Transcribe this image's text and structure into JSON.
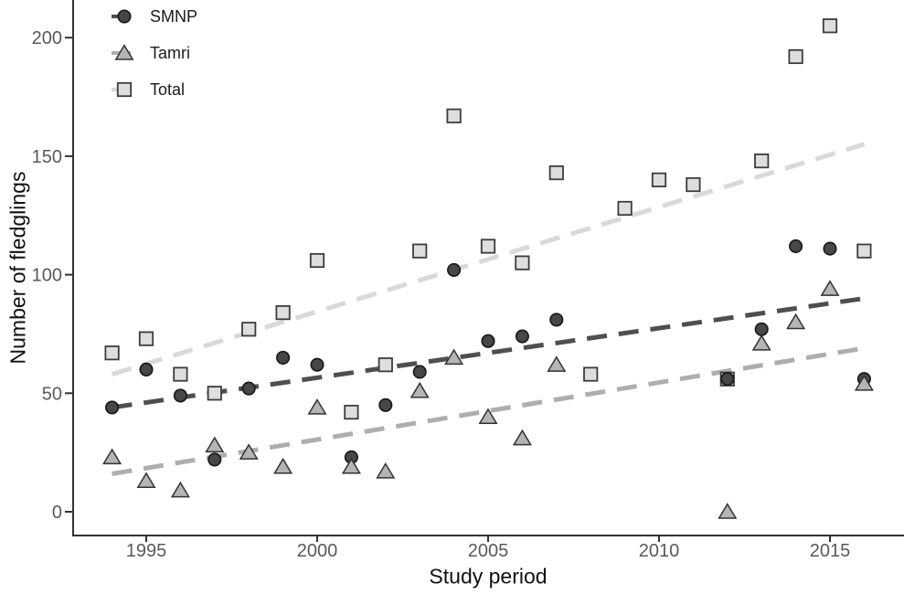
{
  "chart_data": {
    "type": "scatter",
    "title": "",
    "xlabel": "Study period",
    "ylabel": "Number of fledglings",
    "x_ticks": [
      1995,
      2000,
      2005,
      2010,
      2015
    ],
    "y_ticks": [
      0,
      50,
      100,
      150,
      200
    ],
    "xlim": [
      1992.9,
      2017.2
    ],
    "ylim": [
      -10,
      216
    ],
    "grid": false,
    "legend_position": "top-left-inside",
    "years": [
      1994,
      1995,
      1996,
      1997,
      1998,
      1999,
      2000,
      2001,
      2002,
      2003,
      2004,
      2005,
      2006,
      2007,
      2008,
      2009,
      2010,
      2011,
      2012,
      2013,
      2014,
      2015,
      2016
    ],
    "series": [
      {
        "name": "SMNP",
        "marker": "circle",
        "fill": "#474747",
        "edge": "#1a1a1a",
        "line_color": "#4f4f4f",
        "values": [
          44,
          60,
          49,
          22,
          52,
          65,
          62,
          23,
          45,
          59,
          102,
          72,
          74,
          81,
          null,
          null,
          null,
          null,
          56,
          77,
          112,
          111,
          56
        ],
        "trend": {
          "start_year": 1994,
          "end_year": 2016,
          "start_value": 44,
          "end_value": 90
        }
      },
      {
        "name": "Tamri",
        "marker": "triangle",
        "fill": "#b5b5b5",
        "edge": "#333333",
        "line_color": "#aeaeae",
        "values": [
          23,
          13,
          9,
          28,
          25,
          19,
          44,
          19,
          17,
          51,
          65,
          40,
          31,
          62,
          null,
          null,
          null,
          null,
          0,
          71,
          80,
          94,
          54
        ],
        "trend": {
          "start_year": 1994,
          "end_year": 2016,
          "start_value": 16,
          "end_value": 69
        }
      },
      {
        "name": "Total",
        "marker": "square",
        "fill": "#dedede",
        "edge": "#3c3c3c",
        "line_color": "#d9d9d9",
        "values": [
          67,
          73,
          58,
          50,
          77,
          84,
          106,
          42,
          62,
          110,
          167,
          112,
          105,
          143,
          58,
          128,
          140,
          138,
          56,
          148,
          192,
          205,
          110
        ],
        "trend": {
          "start_year": 1994,
          "end_year": 2016,
          "start_value": 58,
          "end_value": 155
        }
      }
    ],
    "axis_color": "#333333",
    "tick_label_color": "#595959",
    "title_color": "#111111",
    "trend_dash": "22 13",
    "trend_width": 5
  }
}
